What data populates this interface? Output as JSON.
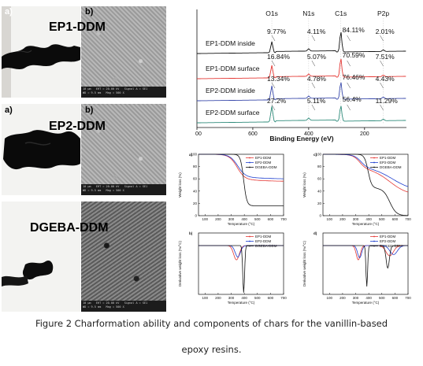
{
  "panels": {
    "a_label": "a)",
    "b_label": "b)",
    "samples": [
      "EP1-DDM",
      "EP2-DDM",
      "DGEBA-DDM"
    ],
    "sem_info": {
      "scale": "10 µm",
      "line1": "EHT = 20.00 kV",
      "line2": "WD = 9.5 mm",
      "line3": "Signal A = SE1",
      "line4": "Mag = 500 X"
    }
  },
  "xps": {
    "peak_labels": [
      "O1s",
      "N1s",
      "C1s",
      "P2p"
    ],
    "xlabel": "Binding Energy (eV)",
    "x_ticks": [
      "800",
      "600",
      "400",
      "200"
    ],
    "rows": [
      {
        "name": "EP1-DDM inside",
        "values": [
          "9.77%",
          "4.11%",
          "84.11%",
          "2.01%"
        ],
        "color": "#111111"
      },
      {
        "name": "EP1-DDM surface",
        "values": [
          "16.84%",
          "5.07%",
          "70.59%",
          "7.51%"
        ],
        "color": "#e53935"
      },
      {
        "name": "EP2-DDM inside",
        "values": [
          "13.34%",
          "4.78%",
          "76.46%",
          "4.43%"
        ],
        "color": "#3949ab"
      },
      {
        "name": "EP2-DDM surface",
        "values": [
          "27.2%",
          "5.11%",
          "56.4%",
          "11.29%"
        ],
        "color": "#2e8b7a"
      }
    ]
  },
  "tga": {
    "xlabel": "Temperature (°C)",
    "ylabel_tga": "Weight loss (%)",
    "ylabel_dtg": "Derivative weight loss (%/°C)",
    "x_ticks": [
      "100",
      "200",
      "300",
      "400",
      "500",
      "600",
      "700"
    ],
    "y_ticks": [
      "100",
      "80",
      "60",
      "40",
      "20",
      "0"
    ],
    "panel_labels": [
      "a)",
      "c)",
      "b)",
      "d)"
    ],
    "legends": [
      [
        "EP1-DDM",
        "EP2-DDM",
        "DGEBA-DDM"
      ],
      [
        "EP1-DDM",
        "EP2-DDM",
        "DGEBA-DDM"
      ],
      [
        "EP1-DDM",
        "EP2-DDM",
        "DGEBA-DDM"
      ],
      [
        "EP1-DDM",
        "EP2-DDM",
        "DER331-DDM"
      ]
    ],
    "colors": {
      "ep1": "#e53935",
      "ep2": "#1e3fd0",
      "dgeba": "#111111"
    }
  },
  "caption": {
    "line1": "Figure 2    Charformation ability and components of chars for the vanillin-based",
    "line2": "epoxy resins."
  }
}
